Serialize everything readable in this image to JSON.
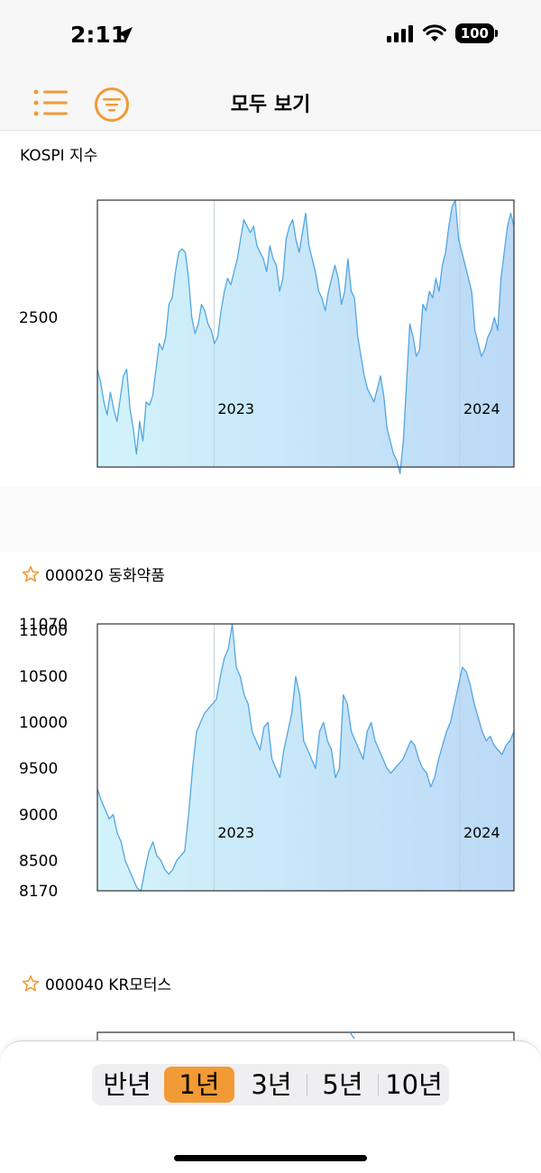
{
  "status_bar": {
    "time": "2:11",
    "battery": "100"
  },
  "nav": {
    "title": "모두 보기",
    "list_icon": "list-icon",
    "filter_icon": "filter-icon"
  },
  "accent_color": "#f29a35",
  "sections": [
    {
      "label": "KOSPI 지수",
      "starred": false
    },
    {
      "label": "000020 동화약품",
      "starred": true
    },
    {
      "label": "000040 KR모터스",
      "starred": true
    }
  ],
  "chart_data": [
    {
      "type": "area",
      "title": "KOSPI 지수",
      "y_ticks": [
        "2500"
      ],
      "x_ticks": [
        "2023",
        "2024"
      ],
      "ylim": [
        2270,
        2680
      ],
      "y_tick_values": [
        2500
      ],
      "x_tick_fractions": [
        0.28,
        0.87
      ],
      "values": [
        2420,
        2400,
        2370,
        2350,
        2385,
        2360,
        2340,
        2375,
        2410,
        2420,
        2360,
        2330,
        2290,
        2340,
        2310,
        2370,
        2365,
        2380,
        2420,
        2460,
        2450,
        2470,
        2520,
        2530,
        2570,
        2600,
        2605,
        2600,
        2560,
        2500,
        2475,
        2490,
        2520,
        2510,
        2490,
        2480,
        2460,
        2470,
        2510,
        2540,
        2560,
        2550,
        2570,
        2590,
        2620,
        2650,
        2640,
        2630,
        2640,
        2610,
        2600,
        2590,
        2570,
        2610,
        2590,
        2580,
        2540,
        2560,
        2620,
        2640,
        2650,
        2620,
        2600,
        2630,
        2660,
        2610,
        2590,
        2570,
        2540,
        2530,
        2510,
        2540,
        2560,
        2580,
        2560,
        2520,
        2540,
        2590,
        2540,
        2530,
        2470,
        2440,
        2410,
        2390,
        2380,
        2370,
        2390,
        2410,
        2380,
        2330,
        2310,
        2290,
        2280,
        2260,
        2310,
        2400,
        2490,
        2470,
        2440,
        2450,
        2520,
        2510,
        2540,
        2530,
        2560,
        2540,
        2580,
        2600,
        2640,
        2670,
        2680,
        2620,
        2600,
        2580,
        2560,
        2540,
        2480,
        2460,
        2440,
        2450,
        2470,
        2480,
        2500,
        2480,
        2560,
        2600,
        2640,
        2660,
        2640
      ]
    },
    {
      "type": "area",
      "title": "000020 동화약품",
      "y_ticks": [
        "11070",
        "11000",
        "10500",
        "10000",
        "9500",
        "9000",
        "8500",
        "8170"
      ],
      "x_ticks": [
        "2023",
        "2024"
      ],
      "ylim": [
        8170,
        11070
      ],
      "y_tick_values": [
        11070,
        11000,
        10500,
        10000,
        9500,
        9000,
        8500,
        8170
      ],
      "x_tick_fractions": [
        0.28,
        0.87
      ],
      "values": [
        9280,
        9150,
        9050,
        8950,
        9000,
        8800,
        8700,
        8500,
        8400,
        8300,
        8200,
        8170,
        8400,
        8600,
        8700,
        8550,
        8500,
        8400,
        8350,
        8400,
        8500,
        8550,
        8600,
        9000,
        9500,
        9900,
        10000,
        10100,
        10150,
        10200,
        10250,
        10500,
        10700,
        10800,
        11070,
        10600,
        10500,
        10300,
        10200,
        9900,
        9800,
        9700,
        9950,
        10000,
        9600,
        9500,
        9400,
        9700,
        9900,
        10100,
        10500,
        10300,
        9800,
        9700,
        9600,
        9500,
        9900,
        10000,
        9800,
        9700,
        9400,
        9500,
        10300,
        10200,
        9900,
        9800,
        9700,
        9600,
        9900,
        10000,
        9800,
        9700,
        9600,
        9500,
        9450,
        9500,
        9550,
        9600,
        9700,
        9800,
        9750,
        9600,
        9500,
        9450,
        9300,
        9400,
        9600,
        9750,
        9900,
        10000,
        10200,
        10400,
        10600,
        10550,
        10400,
        10200,
        10050,
        9900,
        9800,
        9850,
        9750,
        9700,
        9650,
        9750,
        9800,
        9900
      ]
    }
  ],
  "time_ranges": [
    "반년",
    "1년",
    "3년",
    "5년",
    "10년"
  ],
  "selected_range": "1년"
}
